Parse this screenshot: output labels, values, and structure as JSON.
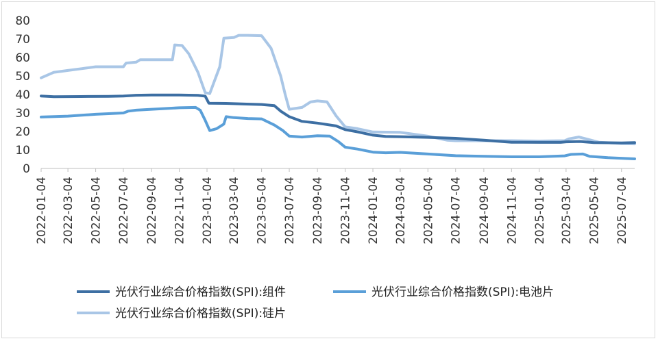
{
  "chart_data": {
    "type": "line",
    "ylim": [
      0,
      80
    ],
    "yticks": [
      "0",
      "10",
      "20",
      "30",
      "40",
      "50",
      "60",
      "70",
      "80"
    ],
    "xlim": [
      "2022-01-04",
      "2025-08-02"
    ],
    "xticks": [
      "2022-01-04",
      "2022-03-04",
      "2022-05-04",
      "2022-07-04",
      "2022-09-04",
      "2022-11-04",
      "2023-01-04",
      "2023-03-04",
      "2023-05-04",
      "2023-07-04",
      "2023-09-04",
      "2023-11-04",
      "2024-01-04",
      "2024-03-04",
      "2024-05-04",
      "2024-07-04",
      "2024-09-04",
      "2024-11-04",
      "2025-01-04",
      "2025-03-04",
      "2025-05-04",
      "2025-07-04"
    ],
    "legend_position": "bottom",
    "series": [
      {
        "name": "光伏行业综合价格指数(SPI):组件",
        "color": "#3d6fa3",
        "points": [
          [
            "2022-01-04",
            39.2
          ],
          [
            "2022-02-01",
            38.8
          ],
          [
            "2022-04-01",
            38.9
          ],
          [
            "2022-06-01",
            39.0
          ],
          [
            "2022-07-04",
            39.2
          ],
          [
            "2022-08-01",
            39.6
          ],
          [
            "2022-09-04",
            39.7
          ],
          [
            "2022-11-04",
            39.7
          ],
          [
            "2022-12-15",
            39.5
          ],
          [
            "2022-12-31",
            39.1
          ],
          [
            "2023-01-08",
            35.3
          ],
          [
            "2023-02-15",
            35.2
          ],
          [
            "2023-04-01",
            34.8
          ],
          [
            "2023-05-04",
            34.6
          ],
          [
            "2023-06-01",
            34.0
          ],
          [
            "2023-06-15",
            31.0
          ],
          [
            "2023-07-04",
            28.0
          ],
          [
            "2023-08-01",
            25.5
          ],
          [
            "2023-09-04",
            24.5
          ],
          [
            "2023-10-15",
            23.0
          ],
          [
            "2023-11-04",
            21.0
          ],
          [
            "2023-12-01",
            19.8
          ],
          [
            "2024-01-04",
            18.0
          ],
          [
            "2024-02-01",
            17.3
          ],
          [
            "2024-03-04",
            17.2
          ],
          [
            "2024-05-04",
            16.8
          ],
          [
            "2024-07-04",
            16.3
          ],
          [
            "2024-09-04",
            15.3
          ],
          [
            "2024-11-04",
            14.2
          ],
          [
            "2025-01-04",
            14.1
          ],
          [
            "2025-02-20",
            14.1
          ],
          [
            "2025-03-04",
            14.4
          ],
          [
            "2025-04-04",
            14.6
          ],
          [
            "2025-05-04",
            14.0
          ],
          [
            "2025-07-04",
            13.8
          ],
          [
            "2025-08-02",
            14.0
          ]
        ]
      },
      {
        "name": "光伏行业综合价格指数(SPI):电池片",
        "color": "#5a9fd8",
        "points": [
          [
            "2022-01-04",
            27.8
          ],
          [
            "2022-03-04",
            28.3
          ],
          [
            "2022-05-04",
            29.3
          ],
          [
            "2022-07-04",
            30.0
          ],
          [
            "2022-07-15",
            31.0
          ],
          [
            "2022-08-01",
            31.5
          ],
          [
            "2022-09-04",
            32.0
          ],
          [
            "2022-11-04",
            32.8
          ],
          [
            "2022-12-10",
            33.0
          ],
          [
            "2022-12-20",
            31.5
          ],
          [
            "2022-12-31",
            26.0
          ],
          [
            "2023-01-10",
            20.5
          ],
          [
            "2023-01-25",
            21.5
          ],
          [
            "2023-02-10",
            24.0
          ],
          [
            "2023-02-15",
            28.0
          ],
          [
            "2023-03-04",
            27.5
          ],
          [
            "2023-04-04",
            27.0
          ],
          [
            "2023-05-04",
            26.8
          ],
          [
            "2023-06-01",
            23.5
          ],
          [
            "2023-06-20",
            20.5
          ],
          [
            "2023-07-04",
            17.5
          ],
          [
            "2023-08-01",
            17.0
          ],
          [
            "2023-09-04",
            17.7
          ],
          [
            "2023-10-01",
            17.5
          ],
          [
            "2023-10-20",
            14.5
          ],
          [
            "2023-11-04",
            11.5
          ],
          [
            "2023-12-01",
            10.5
          ],
          [
            "2024-01-04",
            8.8
          ],
          [
            "2024-02-01",
            8.5
          ],
          [
            "2024-03-04",
            8.7
          ],
          [
            "2024-05-04",
            7.8
          ],
          [
            "2024-07-04",
            6.9
          ],
          [
            "2024-09-04",
            6.6
          ],
          [
            "2024-11-04",
            6.3
          ],
          [
            "2025-01-04",
            6.3
          ],
          [
            "2025-03-01",
            6.8
          ],
          [
            "2025-03-15",
            7.6
          ],
          [
            "2025-04-10",
            7.8
          ],
          [
            "2025-04-25",
            6.5
          ],
          [
            "2025-06-04",
            5.8
          ],
          [
            "2025-08-02",
            5.2
          ]
        ]
      },
      {
        "name": "光伏行业综合价格指数(SPI):硅片",
        "color": "#a9c6e6",
        "points": [
          [
            "2022-01-04",
            49.0
          ],
          [
            "2022-02-01",
            52.0
          ],
          [
            "2022-03-04",
            53.0
          ],
          [
            "2022-04-04",
            54.0
          ],
          [
            "2022-05-04",
            55.0
          ],
          [
            "2022-07-04",
            55.0
          ],
          [
            "2022-07-10",
            57.0
          ],
          [
            "2022-08-01",
            57.5
          ],
          [
            "2022-08-10",
            58.8
          ],
          [
            "2022-10-01",
            58.8
          ],
          [
            "2022-10-20",
            58.8
          ],
          [
            "2022-10-25",
            66.8
          ],
          [
            "2022-11-10",
            66.5
          ],
          [
            "2022-11-25",
            62.0
          ],
          [
            "2022-12-15",
            52.0
          ],
          [
            "2022-12-31",
            41.0
          ],
          [
            "2023-01-10",
            40.5
          ],
          [
            "2023-02-01",
            55.0
          ],
          [
            "2023-02-10",
            70.5
          ],
          [
            "2023-03-04",
            70.8
          ],
          [
            "2023-03-15",
            72.0
          ],
          [
            "2023-04-04",
            72.0
          ],
          [
            "2023-05-04",
            71.8
          ],
          [
            "2023-05-25",
            65.0
          ],
          [
            "2023-06-15",
            50.0
          ],
          [
            "2023-06-25",
            40.0
          ],
          [
            "2023-07-04",
            32.0
          ],
          [
            "2023-08-01",
            33.0
          ],
          [
            "2023-08-20",
            36.0
          ],
          [
            "2023-09-04",
            36.5
          ],
          [
            "2023-09-25",
            36.0
          ],
          [
            "2023-10-15",
            28.5
          ],
          [
            "2023-11-04",
            22.5
          ],
          [
            "2023-12-01",
            21.5
          ],
          [
            "2024-01-04",
            19.7
          ],
          [
            "2024-03-04",
            19.5
          ],
          [
            "2024-04-04",
            18.5
          ],
          [
            "2024-05-04",
            17.5
          ],
          [
            "2024-06-15",
            15.3
          ],
          [
            "2024-07-04",
            15.0
          ],
          [
            "2024-09-04",
            15.0
          ],
          [
            "2024-11-04",
            15.0
          ],
          [
            "2025-01-04",
            14.8
          ],
          [
            "2025-03-01",
            15.0
          ],
          [
            "2025-03-10",
            16.0
          ],
          [
            "2025-04-01",
            17.0
          ],
          [
            "2025-04-20",
            15.8
          ],
          [
            "2025-05-15",
            14.2
          ],
          [
            "2025-07-04",
            13.5
          ],
          [
            "2025-08-02",
            13.3
          ]
        ]
      }
    ]
  }
}
